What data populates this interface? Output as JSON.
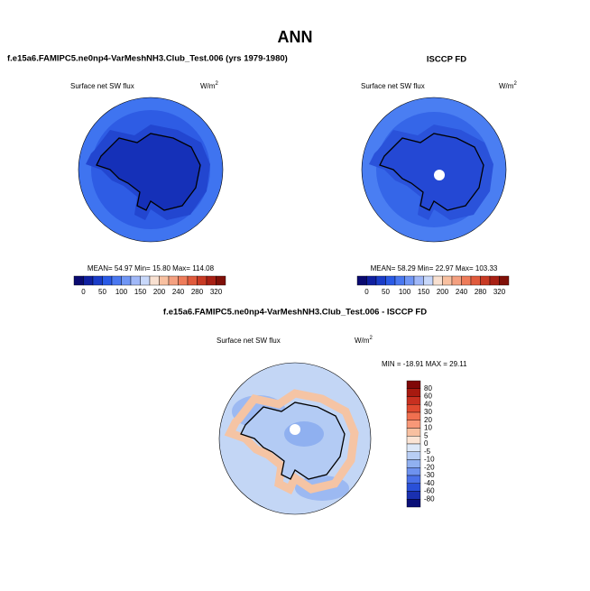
{
  "title": "ANN",
  "panels": [
    {
      "title": "f.e15a6.FAMIPC5.ne0np4-VarMeshNH3.Club_Test.006 (yrs 1979-1980)",
      "variable": "Surface net SW flux",
      "units": "W/m",
      "units_power": "2",
      "stats": "MEAN= 54.97  Min= 15.80  Max= 114.08"
    },
    {
      "title": "ISCCP FD",
      "variable": "Surface net SW flux",
      "units": "W/m",
      "units_power": "2",
      "stats": "MEAN= 58.29  Min= 22.97  Max= 103.33"
    },
    {
      "title": "f.e15a6.FAMIPC5.ne0np4-VarMeshNH3.Club_Test.006 - ISCCP FD",
      "variable": "Surface net SW flux",
      "units": "W/m",
      "units_power": "2",
      "stats": "MIN = -18.91 MAX = 29.11"
    }
  ],
  "colorbar": {
    "labels": [
      0,
      50,
      100,
      150,
      200,
      240,
      280,
      320
    ],
    "colors": [
      "#0a0a70",
      "#1020a0",
      "#1a3cc8",
      "#2a5ae6",
      "#4a78f0",
      "#7096f5",
      "#a0b8f8",
      "#c8d8fa",
      "#f8e0d0",
      "#f8c0a0",
      "#f4a080",
      "#ee7c5a",
      "#e05a3c",
      "#c83a24",
      "#a82014",
      "#801008"
    ]
  },
  "diff_colorbar": {
    "labels": [
      80,
      60,
      40,
      30,
      20,
      10,
      5,
      0,
      -5,
      -10,
      -20,
      -30,
      -40,
      -60,
      -80
    ],
    "colors": [
      "#800808",
      "#a81a10",
      "#c83020",
      "#e04a30",
      "#f07050",
      "#f89878",
      "#f8c0a0",
      "#fbe4d4",
      "#dde8f8",
      "#b8cef5",
      "#90b0f0",
      "#6e92ee",
      "#4a70e8",
      "#2a50d8",
      "#1a30b0",
      "#0a1078"
    ]
  }
}
